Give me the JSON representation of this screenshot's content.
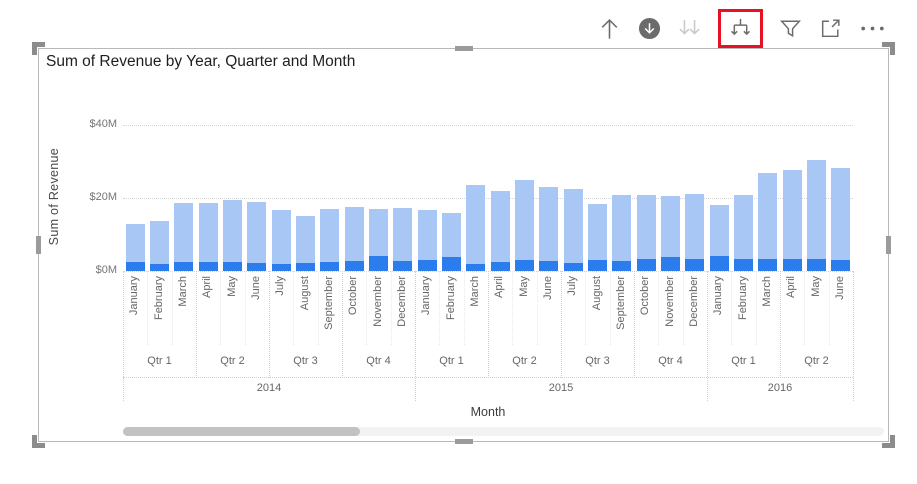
{
  "toolbar": {
    "icons": [
      {
        "name": "drill-up-icon",
        "state": "enabled"
      },
      {
        "name": "drill-down-toggle-icon",
        "state": "on"
      },
      {
        "name": "go-to-next-level-icon",
        "state": "disabled"
      },
      {
        "name": "expand-all-down-one-level-icon",
        "state": "highlighted"
      },
      {
        "name": "filter-icon",
        "state": "enabled"
      },
      {
        "name": "focus-mode-icon",
        "state": "enabled"
      },
      {
        "name": "more-options-icon",
        "state": "enabled"
      }
    ],
    "highlight_color": "#E81123",
    "icon_color": "#6B6B6B",
    "disabled_icon_color": "#C9C9C9"
  },
  "visual": {
    "title": "Sum of Revenue by Year, Quarter and Month"
  },
  "chart_data": {
    "type": "bar",
    "stacked": true,
    "title": "Sum of Revenue by Year, Quarter and Month",
    "xlabel": "Month",
    "ylabel": "Sum of Revenue",
    "unit": "millions USD",
    "ylim": [
      0,
      44
    ],
    "grid": "horizontal-dotted",
    "legend": "none",
    "colors": {
      "segment_base": "#2B7CEC",
      "segment_top": "#A8C7F5"
    },
    "y_axis": {
      "ticks": [
        {
          "label": "$0M",
          "value": 0
        },
        {
          "label": "$20M",
          "value": 20
        },
        {
          "label": "$40M",
          "value": 40
        }
      ]
    },
    "hierarchy_levels": [
      "Year",
      "Quarter",
      "Month"
    ],
    "bars": [
      {
        "month": "January",
        "quarter": "Qtr 1",
        "year": "2014",
        "total": 12.9,
        "base": 2.6
      },
      {
        "month": "February",
        "quarter": "Qtr 1",
        "year": "2014",
        "total": 13.7,
        "base": 1.9
      },
      {
        "month": "March",
        "quarter": "Qtr 1",
        "year": "2014",
        "total": 18.6,
        "base": 2.6
      },
      {
        "month": "April",
        "quarter": "Qtr 2",
        "year": "2014",
        "total": 18.7,
        "base": 2.4
      },
      {
        "month": "May",
        "quarter": "Qtr 2",
        "year": "2014",
        "total": 19.4,
        "base": 2.5
      },
      {
        "month": "June",
        "quarter": "Qtr 2",
        "year": "2014",
        "total": 18.9,
        "base": 2.2
      },
      {
        "month": "July",
        "quarter": "Qtr 3",
        "year": "2014",
        "total": 16.7,
        "base": 1.9
      },
      {
        "month": "August",
        "quarter": "Qtr 3",
        "year": "2014",
        "total": 15.1,
        "base": 2.2
      },
      {
        "month": "September",
        "quarter": "Qtr 3",
        "year": "2014",
        "total": 17.1,
        "base": 2.5
      },
      {
        "month": "October",
        "quarter": "Qtr 4",
        "year": "2014",
        "total": 17.4,
        "base": 2.7
      },
      {
        "month": "November",
        "quarter": "Qtr 4",
        "year": "2014",
        "total": 17.1,
        "base": 4.0
      },
      {
        "month": "December",
        "quarter": "Qtr 4",
        "year": "2014",
        "total": 17.3,
        "base": 2.7
      },
      {
        "month": "January",
        "quarter": "Qtr 1",
        "year": "2015",
        "total": 16.8,
        "base": 3.0
      },
      {
        "month": "February",
        "quarter": "Qtr 1",
        "year": "2015",
        "total": 15.8,
        "base": 3.8
      },
      {
        "month": "March",
        "quarter": "Qtr 1",
        "year": "2015",
        "total": 23.6,
        "base": 2.0
      },
      {
        "month": "April",
        "quarter": "Qtr 2",
        "year": "2015",
        "total": 21.9,
        "base": 2.5
      },
      {
        "month": "May",
        "quarter": "Qtr 2",
        "year": "2015",
        "total": 24.9,
        "base": 3.0
      },
      {
        "month": "June",
        "quarter": "Qtr 2",
        "year": "2015",
        "total": 23.0,
        "base": 2.7
      },
      {
        "month": "July",
        "quarter": "Qtr 3",
        "year": "2015",
        "total": 22.4,
        "base": 2.3
      },
      {
        "month": "August",
        "quarter": "Qtr 3",
        "year": "2015",
        "total": 18.3,
        "base": 2.9
      },
      {
        "month": "September",
        "quarter": "Qtr 3",
        "year": "2015",
        "total": 20.9,
        "base": 2.7
      },
      {
        "month": "October",
        "quarter": "Qtr 4",
        "year": "2015",
        "total": 20.7,
        "base": 3.3
      },
      {
        "month": "November",
        "quarter": "Qtr 4",
        "year": "2015",
        "total": 20.6,
        "base": 3.7
      },
      {
        "month": "December",
        "quarter": "Qtr 4",
        "year": "2015",
        "total": 21.0,
        "base": 3.2
      },
      {
        "month": "January",
        "quarter": "Qtr 1",
        "year": "2016",
        "total": 18.2,
        "base": 4.1
      },
      {
        "month": "February",
        "quarter": "Qtr 1",
        "year": "2016",
        "total": 20.8,
        "base": 3.3
      },
      {
        "month": "March",
        "quarter": "Qtr 1",
        "year": "2016",
        "total": 26.8,
        "base": 3.2
      },
      {
        "month": "April",
        "quarter": "Qtr 2",
        "year": "2016",
        "total": 27.8,
        "base": 3.3
      },
      {
        "month": "May",
        "quarter": "Qtr 2",
        "year": "2016",
        "total": 30.5,
        "base": 3.2
      },
      {
        "month": "June",
        "quarter": "Qtr 2",
        "year": "2016",
        "total": 28.1,
        "base": 3.0
      }
    ]
  }
}
